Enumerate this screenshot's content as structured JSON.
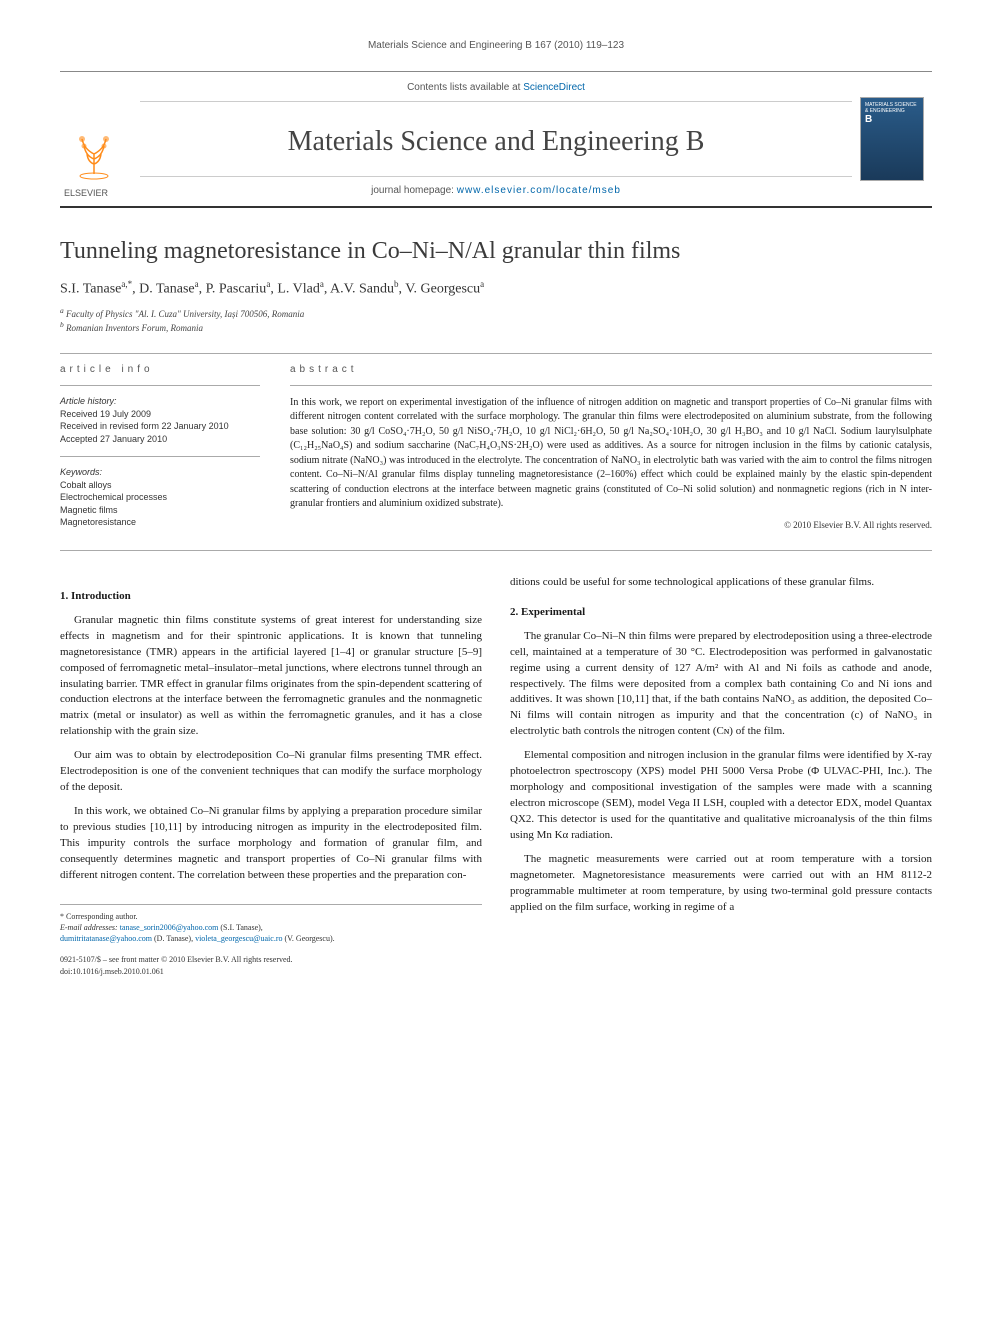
{
  "running_header": "Materials Science and Engineering B 167 (2010) 119–123",
  "masthead": {
    "contents_prefix": "Contents lists available at ",
    "contents_link": "ScienceDirect",
    "journal_name": "Materials Science and Engineering B",
    "homepage_prefix": "journal homepage: ",
    "homepage_url": "www.elsevier.com/locate/mseb",
    "publisher": "ELSEVIER",
    "cover_title": "MATERIALS SCIENCE & ENGINEERING",
    "cover_letter": "B"
  },
  "article": {
    "title": "Tunneling magnetoresistance in Co–Ni–N/Al granular thin films",
    "authors_html": "S.I. Tanase<sup>a,*</sup>, D. Tanase<sup>a</sup>, P. Pascariu<sup>a</sup>, L. Vlad<sup>a</sup>, A.V. Sandu<sup>b</sup>, V. Georgescu<sup>a</sup>",
    "affiliations": [
      "a Faculty of Physics \"Al. I. Cuza\" University, Iași 700506, Romania",
      "b Romanian Inventors Forum, Romania"
    ]
  },
  "info": {
    "heading": "article info",
    "history_label": "Article history:",
    "history": [
      "Received 19 July 2009",
      "Received in revised form 22 January 2010",
      "Accepted 27 January 2010"
    ],
    "keywords_label": "Keywords:",
    "keywords": [
      "Cobalt alloys",
      "Electrochemical processes",
      "Magnetic films",
      "Magnetoresistance"
    ]
  },
  "abstract": {
    "heading": "abstract",
    "text": "In this work, we report on experimental investigation of the influence of nitrogen addition on magnetic and transport properties of Co–Ni granular films with different nitrogen content correlated with the surface morphology. The granular thin films were electrodeposited on aluminium substrate, from the following base solution: 30 g/l CoSO₄·7H₂O, 50 g/l NiSO₄·7H₂O, 10 g/l NiCl₂·6H₂O, 50 g/l Na₂SO₄·10H₂O, 30 g/l H₃BO₃ and 10 g/l NaCl. Sodium laurylsulphate (C₁₂H₂₅NaO₄S) and sodium saccharine (NaC₇H₄O₃NS·2H₂O) were used as additives. As a source for nitrogen inclusion in the films by cationic catalysis, sodium nitrate (NaNO₃) was introduced in the electrolyte. The concentration of NaNO₃ in electrolytic bath was varied with the aim to control the films nitrogen content. Co–Ni–N/Al granular films display tunneling magnetoresistance (2–160%) effect which could be explained mainly by the elastic spin-dependent scattering of conduction electrons at the interface between magnetic grains (constituted of Co–Ni solid solution) and nonmagnetic regions (rich in N inter-granular frontiers and aluminium oxidized substrate).",
    "copyright": "© 2010 Elsevier B.V. All rights reserved."
  },
  "sections": {
    "intro_heading": "1. Introduction",
    "intro_p1": "Granular magnetic thin films constitute systems of great interest for understanding size effects in magnetism and for their spintronic applications. It is known that tunneling magnetoresistance (TMR) appears in the artificial layered [1–4] or granular structure [5–9] composed of ferromagnetic metal–insulator–metal junctions, where electrons tunnel through an insulating barrier. TMR effect in granular films originates from the spin-dependent scattering of conduction electrons at the interface between the ferromagnetic granules and the nonmagnetic matrix (metal or insulator) as well as within the ferromagnetic granules, and it has a close relationship with the grain size.",
    "intro_p2": "Our aim was to obtain by electrodeposition Co–Ni granular films presenting TMR effect. Electrodeposition is one of the convenient techniques that can modify the surface morphology of the deposit.",
    "intro_p3": "In this work, we obtained Co–Ni granular films by applying a preparation procedure similar to previous studies [10,11] by introducing nitrogen as impurity in the electrodeposited film. This impurity controls the surface morphology and formation of granular film, and consequently determines magnetic and transport properties of Co–Ni granular films with different nitrogen content. The correlation between these properties and the preparation con-",
    "intro_p3_cont": "ditions could be useful for some technological applications of these granular films.",
    "exp_heading": "2. Experimental",
    "exp_p1": "The granular Co–Ni–N thin films were prepared by electrodeposition using a three-electrode cell, maintained at a temperature of 30 °C. Electrodeposition was performed in galvanostatic regime using a current density of 127 A/m² with Al and Ni foils as cathode and anode, respectively. The films were deposited from a complex bath containing Co and Ni ions and additives. It was shown [10,11] that, if the bath contains NaNO₃ as addition, the deposited Co–Ni films will contain nitrogen as impurity and that the concentration (c) of NaNO₃ in electrolytic bath controls the nitrogen content (Cɴ) of the film.",
    "exp_p2": "Elemental composition and nitrogen inclusion in the granular films were identified by X-ray photoelectron spectroscopy (XPS) model PHI 5000 Versa Probe (Φ ULVAC-PHI, Inc.). The morphology and compositional investigation of the samples were made with a scanning electron microscope (SEM), model Vega II LSH, coupled with a detector EDX, model Quantax QX2. This detector is used for the quantitative and qualitative microanalysis of the thin films using Mn Kα radiation.",
    "exp_p3": "The magnetic measurements were carried out at room temperature with a torsion magnetometer. Magnetoresistance measurements were carried out with an HM 8112-2 programmable multimeter at room temperature, by using two-terminal gold pressure contacts applied on the film surface, working in regime of a"
  },
  "footer": {
    "corr_label": "* Corresponding author.",
    "email_label": "E-mail addresses:",
    "email1": "tanase_sorin2006@yahoo.com",
    "email1_name": "(S.I. Tanase),",
    "email2": "dumitritatanase@yahoo.com",
    "email2_name": "(D. Tanase),",
    "email3": "violeta_georgescu@uaic.ro",
    "email3_name": "(V. Georgescu).",
    "issn": "0921-5107/$ – see front matter © 2010 Elsevier B.V. All rights reserved.",
    "doi": "doi:10.1016/j.mseb.2010.01.061"
  },
  "colors": {
    "link": "#0066aa",
    "text": "#1a1a1a",
    "muted": "#555555",
    "cover_bg_top": "#2a5c8a",
    "cover_bg_bottom": "#1a3a5a",
    "elsevier_orange": "#ff8c1a"
  }
}
